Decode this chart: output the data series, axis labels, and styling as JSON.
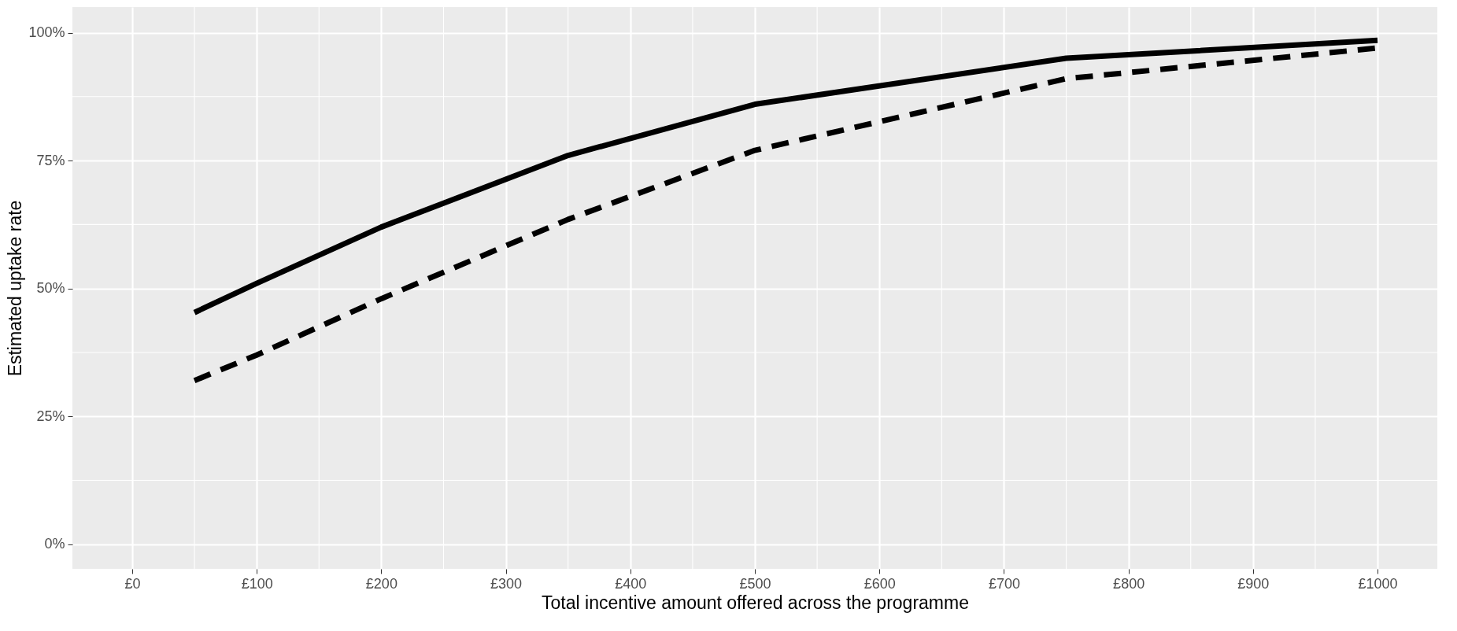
{
  "chart_data": {
    "type": "line",
    "xlabel": "Total incentive amount offered across the programme",
    "ylabel": "Estimated uptake rate",
    "x": [
      50,
      100,
      200,
      350,
      500,
      750,
      1000
    ],
    "series": [
      {
        "color": "#000000",
        "line_style": "solid",
        "values": [
          45.3,
          51,
          62,
          76,
          86,
          95,
          98.5
        ]
      },
      {
        "color": "#000000",
        "line_style": "dashed",
        "values": [
          32,
          37,
          48,
          63.5,
          77,
          91,
          97
        ]
      }
    ],
    "xlim": [
      -48,
      1048
    ],
    "ylim": [
      -4.8,
      105
    ],
    "xticks": [
      {
        "value": 0,
        "label": "£0"
      },
      {
        "value": 100,
        "label": "£100"
      },
      {
        "value": 200,
        "label": "£200"
      },
      {
        "value": 300,
        "label": "£300"
      },
      {
        "value": 400,
        "label": "£400"
      },
      {
        "value": 500,
        "label": "£500"
      },
      {
        "value": 600,
        "label": "£600"
      },
      {
        "value": 700,
        "label": "£700"
      },
      {
        "value": 800,
        "label": "£800"
      },
      {
        "value": 900,
        "label": "£900"
      },
      {
        "value": 1000,
        "label": "£1000"
      }
    ],
    "yticks": [
      {
        "value": 0,
        "label": "0%"
      },
      {
        "value": 25,
        "label": "25%"
      },
      {
        "value": 50,
        "label": "50%"
      },
      {
        "value": 75,
        "label": "75%"
      },
      {
        "value": 100,
        "label": "100%"
      }
    ],
    "grid": true
  }
}
